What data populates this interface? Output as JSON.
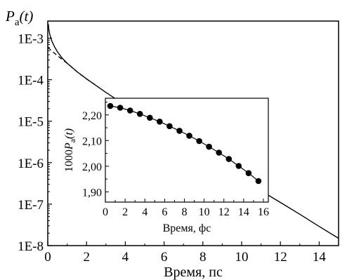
{
  "chart_data": [
    {
      "type": "line",
      "ylabel": "P_a(t)",
      "ylabel_parts": {
        "main": "P",
        "sub": "a",
        "arg": "(t)"
      },
      "xlabel": "Время, пс",
      "xlim": [
        0,
        15
      ],
      "ylim": [
        1e-08,
        0.0026
      ],
      "yscale": "log",
      "x_ticks": [
        0,
        2,
        4,
        6,
        8,
        10,
        12,
        14
      ],
      "x_tick_labels": [
        "0",
        "2",
        "4",
        "6",
        "8",
        "10",
        "12",
        "14"
      ],
      "y_ticks": [
        0.001,
        0.0001,
        1e-05,
        1e-06,
        1e-07,
        1e-08
      ],
      "y_tick_labels": [
        "1E-3",
        "1E-4",
        "1E-5",
        "1E-6",
        "1E-7",
        "1E-8"
      ],
      "grid": false,
      "series": [
        {
          "style": "solid",
          "x": [
            0.03,
            0.05,
            0.1,
            0.2,
            0.35,
            0.5,
            0.75,
            1.0,
            1.5,
            2.0,
            3.0,
            4.0,
            5.0,
            6.0,
            7.0,
            8.0,
            9.0,
            10.0,
            11.0,
            12.0,
            13.0,
            14.0,
            15.0
          ],
          "y": [
            0.0022,
            0.0017,
            0.00125,
            0.00088,
            0.00062,
            0.00047,
            0.00033,
            0.00025,
            0.000157,
            0.000105,
            4.95e-05,
            2.43e-05,
            1.21e-05,
            6.1e-06,
            3.1e-06,
            1.6e-06,
            8.2e-07,
            4.2e-07,
            2.1e-07,
            1.1e-07,
            5.7e-08,
            2.9e-08,
            1.5e-08
          ]
        },
        {
          "style": "dashed",
          "x": [
            0,
            0.5,
            1.0,
            1.5,
            2.0,
            2.5
          ],
          "y": [
            0.0006,
            0.00038,
            0.00025,
            0.000157,
            0.000105,
            7.2e-05
          ]
        }
      ]
    },
    {
      "type": "line",
      "inset": true,
      "ylabel": "1000P_a(t)",
      "ylabel_parts": {
        "pre": "1000",
        "main": "P",
        "sub": "a",
        "arg": "(t)"
      },
      "xlabel": "Время, фс",
      "xlim": [
        0,
        16.5
      ],
      "ylim": [
        1.86,
        2.265
      ],
      "x_ticks": [
        0,
        2,
        4,
        6,
        8,
        10,
        12,
        14,
        16
      ],
      "x_tick_labels": [
        "0",
        "2",
        "4",
        "6",
        "8",
        "10",
        "12",
        "14",
        "16"
      ],
      "y_ticks": [
        1.9,
        2.0,
        2.1,
        2.2
      ],
      "y_tick_labels": [
        "1,90",
        "2,00",
        "2,10",
        "2,20"
      ],
      "grid": false,
      "series": [
        {
          "style": "solid-markers",
          "x": [
            0.5,
            1.5,
            2.5,
            3.5,
            4.5,
            5.5,
            6.5,
            7.5,
            8.5,
            9.5,
            10.5,
            11.5,
            12.5,
            13.5,
            14.5,
            15.5
          ],
          "y": [
            2.235,
            2.228,
            2.217,
            2.204,
            2.189,
            2.174,
            2.156,
            2.138,
            2.119,
            2.098,
            2.076,
            2.053,
            2.028,
            2.001,
            1.973,
            1.942
          ],
          "fit_y": [
            2.235,
            2.228,
            2.217,
            2.204,
            2.189,
            2.174,
            2.156,
            2.138,
            2.119,
            2.098,
            2.076,
            2.053,
            2.028,
            2.001,
            1.973,
            1.942
          ]
        }
      ]
    }
  ]
}
